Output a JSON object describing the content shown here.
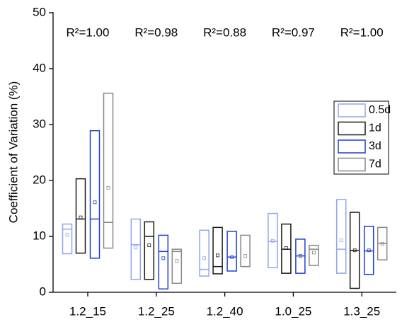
{
  "chart_data": {
    "type": "floating-box",
    "y_label": "Coefficient of Variation (%)",
    "categories": [
      "1.2_15",
      "1.2_25",
      "1.2_40",
      "1.0_25",
      "1.3_25"
    ],
    "annotations": [
      "R²=1.00",
      "R²=0.98",
      "R²=0.88",
      "R²=0.97",
      "R²=1.00"
    ],
    "ylim": [
      0,
      50
    ],
    "yticks": [
      0,
      10,
      20,
      30,
      40,
      50
    ],
    "legend_position": "right",
    "series": [
      {
        "name": "0.5d",
        "color": "#8fa6ee",
        "low": [
          6.9,
          2.3,
          2.9,
          4.4,
          3.4
        ],
        "high": [
          12.2,
          13.1,
          11.1,
          14.1,
          16.6
        ],
        "median": [
          11.3,
          8.5,
          4.1,
          9.1,
          7.7
        ],
        "mean": [
          10.3,
          8.0,
          6.1,
          9.2,
          9.3
        ]
      },
      {
        "name": "1d",
        "color": "#1a1a1a",
        "low": [
          7.0,
          2.3,
          3.3,
          3.4,
          0.7
        ],
        "high": [
          20.3,
          12.6,
          11.6,
          12.2,
          14.3
        ],
        "median": [
          13.1,
          10.0,
          4.6,
          7.7,
          7.5
        ],
        "mean": [
          13.4,
          8.4,
          6.6,
          7.9,
          7.5
        ]
      },
      {
        "name": "3d",
        "color": "#1f3fd0",
        "low": [
          6.1,
          0.6,
          3.8,
          3.4,
          3.2
        ],
        "high": [
          28.9,
          10.2,
          10.9,
          9.5,
          11.8
        ],
        "median": [
          13.1,
          7.3,
          6.3,
          6.5,
          7.4
        ],
        "mean": [
          16.1,
          6.1,
          6.3,
          6.5,
          7.5
        ]
      },
      {
        "name": "7d",
        "color": "#888888",
        "low": [
          7.9,
          1.6,
          4.6,
          4.8,
          5.8
        ],
        "high": [
          35.6,
          7.7,
          10.2,
          8.4,
          11.6
        ],
        "median": [
          12.5,
          7.3,
          4.6,
          7.7,
          8.7
        ],
        "mean": [
          18.7,
          5.6,
          6.5,
          7.1,
          8.7
        ]
      }
    ]
  }
}
